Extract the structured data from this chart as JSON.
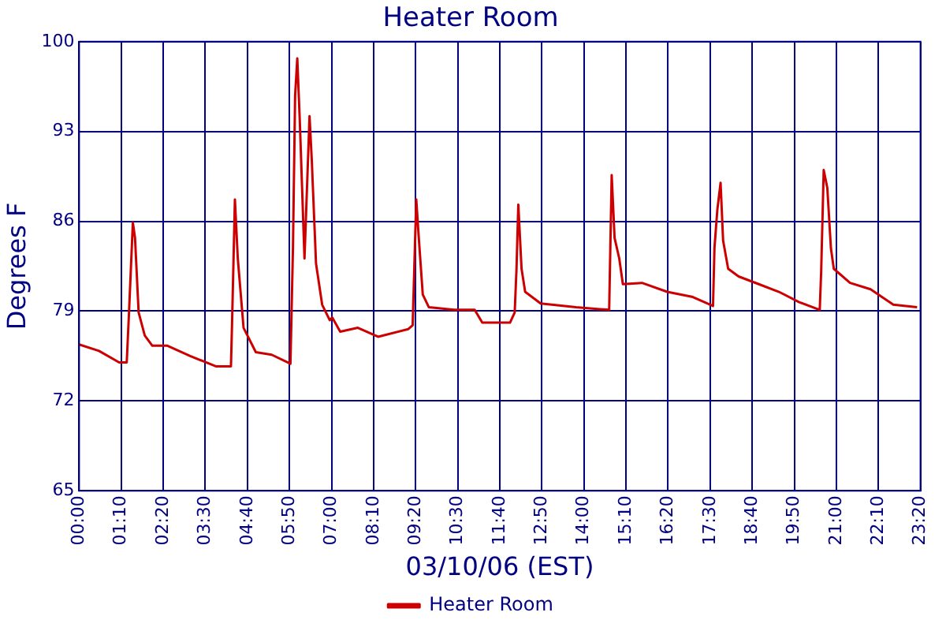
{
  "chart_data": {
    "type": "line",
    "title": "Heater Room",
    "xlabel": "03/10/06 (EST)",
    "ylabel": "Degrees F",
    "x": [
      0,
      0.55,
      1.11,
      1.32,
      1.38,
      1.49,
      1.55,
      1.65,
      1.82,
      2.03,
      2.45,
      3.08,
      3.79,
      4.21,
      4.24,
      4.32,
      4.4,
      4.56,
      4.9,
      5.34,
      5.86,
      5.93,
      5.99,
      6.05,
      6.12,
      6.25,
      6.39,
      6.45,
      6.57,
      6.74,
      6.95,
      7.02,
      7.24,
      7.73,
      8.29,
      9.13,
      9.25,
      9.35,
      9.42,
      9.53,
      9.7,
      10.4,
      10.97,
      11.18,
      11.95,
      12.08,
      12.13,
      12.18,
      12.27,
      12.37,
      12.8,
      13.78,
      14.7,
      14.77,
      14.85,
      14.98,
      15.08,
      15.61,
      16.31,
      17.02,
      17.58,
      17.62,
      17.7,
      17.79,
      17.86,
      18.0,
      18.29,
      18.85,
      19.41,
      19.97,
      20.54,
      20.58,
      20.65,
      20.75,
      20.85,
      20.93,
      21.38,
      21.95,
      22.58,
      23.24
    ],
    "series": [
      {
        "name": "Heater Room",
        "color": "#cc0000",
        "values": [
          76.4,
          75.9,
          75.0,
          75.0,
          78.7,
          85.9,
          84.7,
          78.9,
          77.1,
          76.3,
          76.3,
          75.5,
          74.7,
          74.7,
          77.9,
          87.7,
          83.1,
          77.7,
          75.8,
          75.6,
          74.9,
          83.9,
          95.8,
          98.7,
          93.8,
          83.1,
          94.2,
          90.9,
          82.7,
          79.5,
          78.3,
          78.5,
          77.4,
          77.7,
          77.0,
          77.6,
          77.9,
          87.7,
          84.7,
          80.3,
          79.3,
          79.1,
          79.1,
          78.1,
          78.1,
          78.9,
          82.3,
          87.3,
          82.3,
          80.5,
          79.6,
          79.3,
          79.1,
          89.6,
          84.7,
          83.1,
          81.1,
          81.2,
          80.5,
          80.1,
          79.4,
          83.9,
          86.9,
          89.0,
          84.5,
          82.3,
          81.7,
          81.1,
          80.5,
          79.7,
          79.1,
          82.1,
          90.0,
          88.6,
          83.9,
          82.3,
          81.2,
          80.7,
          79.5,
          79.3
        ]
      }
    ],
    "xlim": [
      0,
      23.3333
    ],
    "xticks": [
      {
        "value": 0,
        "label": "00:00"
      },
      {
        "value": 1.1667,
        "label": "01:10"
      },
      {
        "value": 2.3333,
        "label": "02:20"
      },
      {
        "value": 3.5,
        "label": "03:30"
      },
      {
        "value": 4.6667,
        "label": "04:40"
      },
      {
        "value": 5.8333,
        "label": "05:50"
      },
      {
        "value": 7,
        "label": "07:00"
      },
      {
        "value": 8.1667,
        "label": "08:10"
      },
      {
        "value": 9.3333,
        "label": "09:20"
      },
      {
        "value": 10.5,
        "label": "10:30"
      },
      {
        "value": 11.6667,
        "label": "11:40"
      },
      {
        "value": 12.8333,
        "label": "12:50"
      },
      {
        "value": 14,
        "label": "14:00"
      },
      {
        "value": 15.1667,
        "label": "15:10"
      },
      {
        "value": 16.3333,
        "label": "16:20"
      },
      {
        "value": 17.5,
        "label": "17:30"
      },
      {
        "value": 18.6667,
        "label": "18:40"
      },
      {
        "value": 19.8333,
        "label": "19:50"
      },
      {
        "value": 21,
        "label": "21:00"
      },
      {
        "value": 22.1667,
        "label": "22:10"
      },
      {
        "value": 23.3333,
        "label": "23:20"
      }
    ],
    "ylim": [
      65,
      100
    ],
    "yticks": [
      65,
      72,
      79,
      86,
      93,
      100
    ],
    "grid": true,
    "legend": "bottom",
    "marker": "none",
    "line_style": "solid"
  }
}
